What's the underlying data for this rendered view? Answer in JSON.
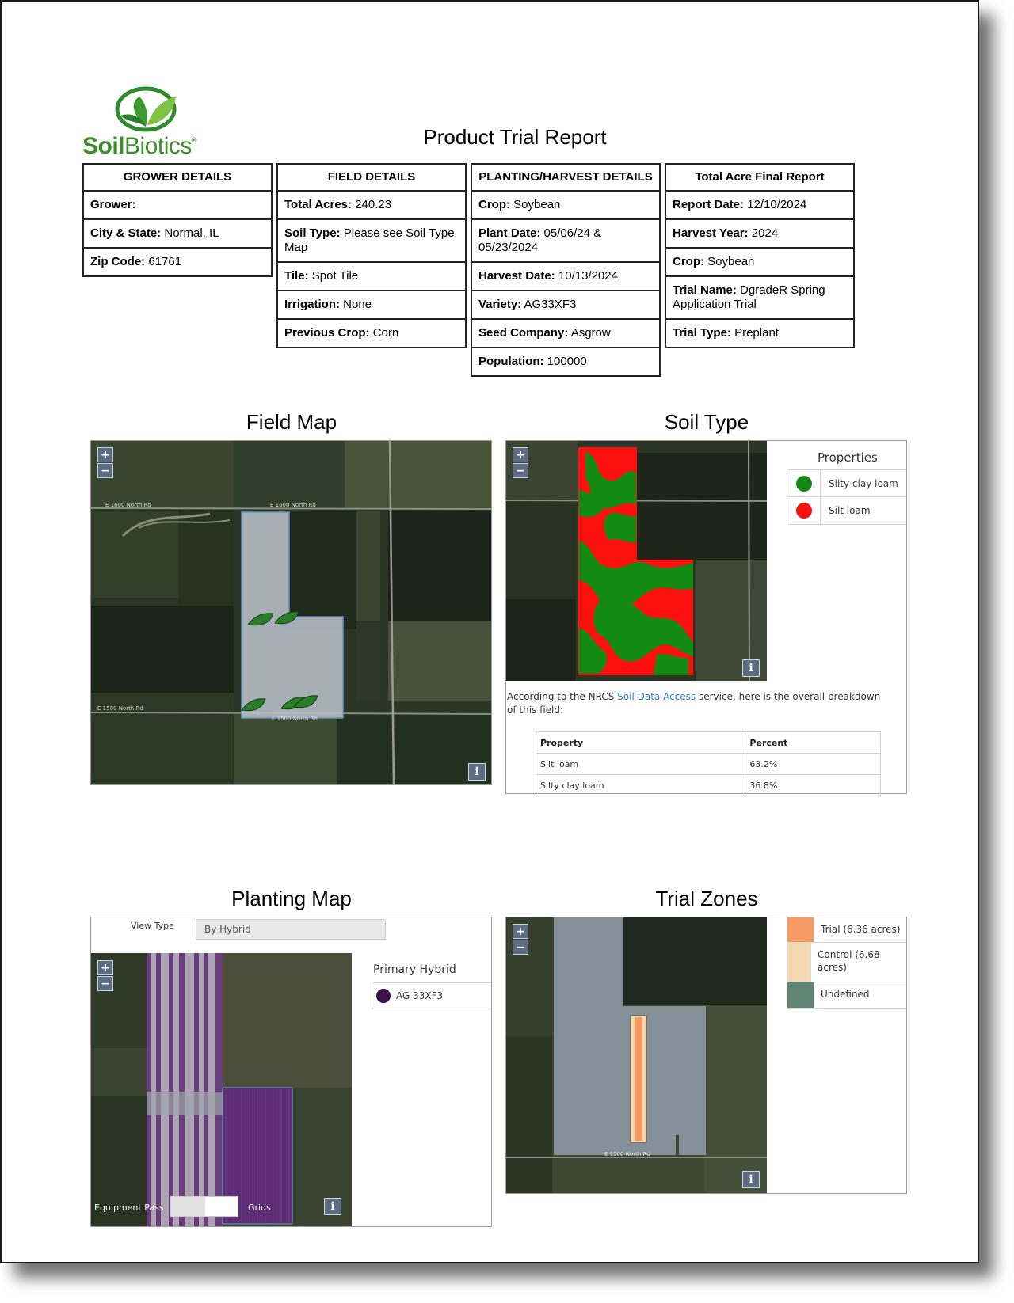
{
  "brand": {
    "word_bold": "Soil",
    "word_light": "Biotics",
    "mark": "®"
  },
  "title": "Product Trial Report",
  "tables": {
    "grower": {
      "header": "GROWER DETAILS",
      "rows": [
        {
          "label": "Grower:",
          "value": ""
        },
        {
          "label": "City & State:",
          "value": "Normal, IL"
        },
        {
          "label": "Zip Code:",
          "value": "61761"
        }
      ]
    },
    "field": {
      "header": "FIELD DETAILS",
      "rows": [
        {
          "label": "Total Acres:",
          "value": "240.23"
        },
        {
          "label": "Soil Type:",
          "value": "Please see Soil Type Map"
        },
        {
          "label": "Tile:",
          "value": "Spot Tile"
        },
        {
          "label": "Irrigation:",
          "value": "None"
        },
        {
          "label": "Previous Crop:",
          "value": "Corn"
        }
      ]
    },
    "planting": {
      "header": "PLANTING/HARVEST DETAILS",
      "rows": [
        {
          "label": "Crop:",
          "value": "Soybean"
        },
        {
          "label": "Plant Date:",
          "value": "05/06/24 & 05/23/2024"
        },
        {
          "label": "Harvest Date:",
          "value": "10/13/2024"
        },
        {
          "label": "Variety:",
          "value": " AG33XF3"
        },
        {
          "label": "Seed Company:",
          "value": " Asgrow"
        },
        {
          "label": "Population:",
          "value": " 100000"
        }
      ]
    },
    "final": {
      "header": "Total Acre Final Report",
      "rows": [
        {
          "label": "Report Date:",
          "value": "12/10/2024"
        },
        {
          "label": "Harvest Year:",
          "value": "2024"
        },
        {
          "label": "Crop:",
          "value": "Soybean"
        },
        {
          "label": "Trial Name:",
          "value": "DgradeR Spring Application Trial"
        },
        {
          "label": "Trial Type:",
          "value": "Preplant"
        }
      ]
    }
  },
  "sections": {
    "field_map": "Field Map",
    "soil_type": "Soil Type",
    "planting_map": "Planting Map",
    "trial_zones": "Trial Zones"
  },
  "map_controls": {
    "zoom_in": "+",
    "zoom_out": "−",
    "info": "i"
  },
  "field_map": {
    "road_labels": [
      "E 1600 North Rd",
      "E 1600 North Rd",
      "E 1500 North Rd",
      "E 1500 North Rd"
    ]
  },
  "soil": {
    "legend_title": "Properties",
    "legend": [
      {
        "name": "Silty clay loam",
        "color": "#138a13"
      },
      {
        "name": "Silt loam",
        "color": "#ff1010"
      }
    ],
    "note_before": "According to the NRCS ",
    "note_link": "Soil Data Access",
    "note_after": " service, here is the overall breakdown of this field:",
    "table_headers": [
      "Property",
      "Percent"
    ],
    "table_rows": [
      [
        "Silt loam",
        "63.2%"
      ],
      [
        "Silty clay loam",
        "36.8%"
      ]
    ]
  },
  "planting_map": {
    "view_type_label": "View Type",
    "view_type_value": "By Hybrid",
    "legend_title": "Primary Hybrid",
    "legend": [
      {
        "name": "AG 33XF3",
        "color": "#3b1247"
      }
    ],
    "equipment_pass_label": "Equipment Pass",
    "grids_label": "Grids"
  },
  "trial_zones": {
    "legend": [
      {
        "name": "Trial (6.36 acres)",
        "color": "#f79a63"
      },
      {
        "name": "Control (6.68 acres)",
        "color": "#f3d9b1"
      },
      {
        "name": "Undefined",
        "color": "#5f8577"
      }
    ],
    "road_label": "E 1500 North Rd"
  }
}
